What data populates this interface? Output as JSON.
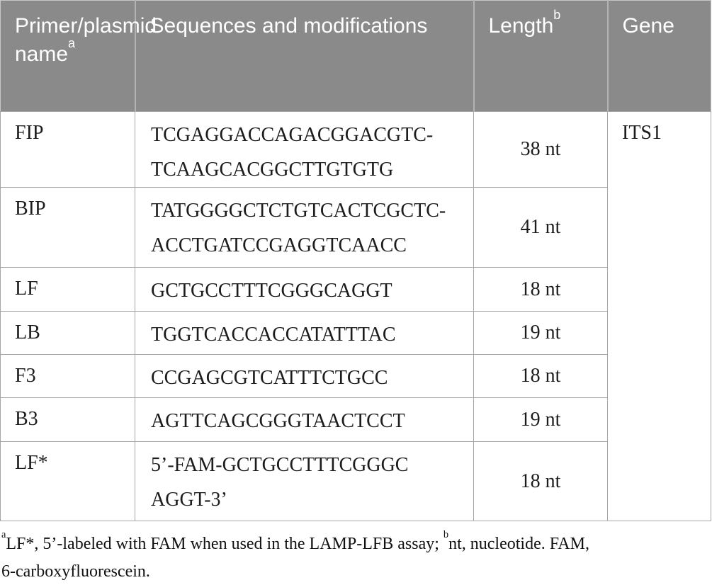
{
  "colors": {
    "header_bg": "#8a8a8a",
    "header_text": "#ffffff",
    "body_text": "#1c1c1c",
    "grid_line": "#a6a6a6"
  },
  "table": {
    "headers": [
      {
        "label": "Primer/plasmid name",
        "sup": "a"
      },
      {
        "label": "Sequences and modifications",
        "sup": ""
      },
      {
        "label": "Length",
        "sup": "b"
      },
      {
        "label": "Gene",
        "sup": ""
      }
    ],
    "rows": [
      {
        "name": "FIP",
        "seq_lines": [
          "TCGAGGACCAGACGGACGTC-",
          "TCAAGCACGGCTTGTGTG"
        ],
        "length": "38 nt"
      },
      {
        "name": "BIP",
        "seq_lines": [
          "TATGGGGCTCTGTCACTCGCTC-",
          "ACCTGATCCGAGGTCAACC"
        ],
        "length": "41 nt"
      },
      {
        "name": "LF",
        "seq_lines": [
          "GCTGCCTTTCGGGCAGGT"
        ],
        "length": "18 nt"
      },
      {
        "name": "LB",
        "seq_lines": [
          "TGGTCACCACCATATTTAC"
        ],
        "length": "19 nt"
      },
      {
        "name": "F3",
        "seq_lines": [
          "CCGAGCGTCATTTCTGCC"
        ],
        "length": "18 nt"
      },
      {
        "name": "B3",
        "seq_lines": [
          "AGTTCAGCGGGTAACTCCT"
        ],
        "length": "19 nt"
      },
      {
        "name": "LF*",
        "seq_lines": [
          "5’-FAM-GCTGCCTTTCGGGC",
          "AGGT-3’"
        ],
        "length": "18 nt"
      }
    ],
    "gene": "ITS1"
  },
  "footnote": {
    "sup_a": "a",
    "text_a": "LF*, 5’-labeled with FAM when used in the LAMP-LFB assay; ",
    "sup_b": "b",
    "text_b": "nt, nucleotide. FAM,",
    "text_c": "6-carboxyfluorescein."
  }
}
